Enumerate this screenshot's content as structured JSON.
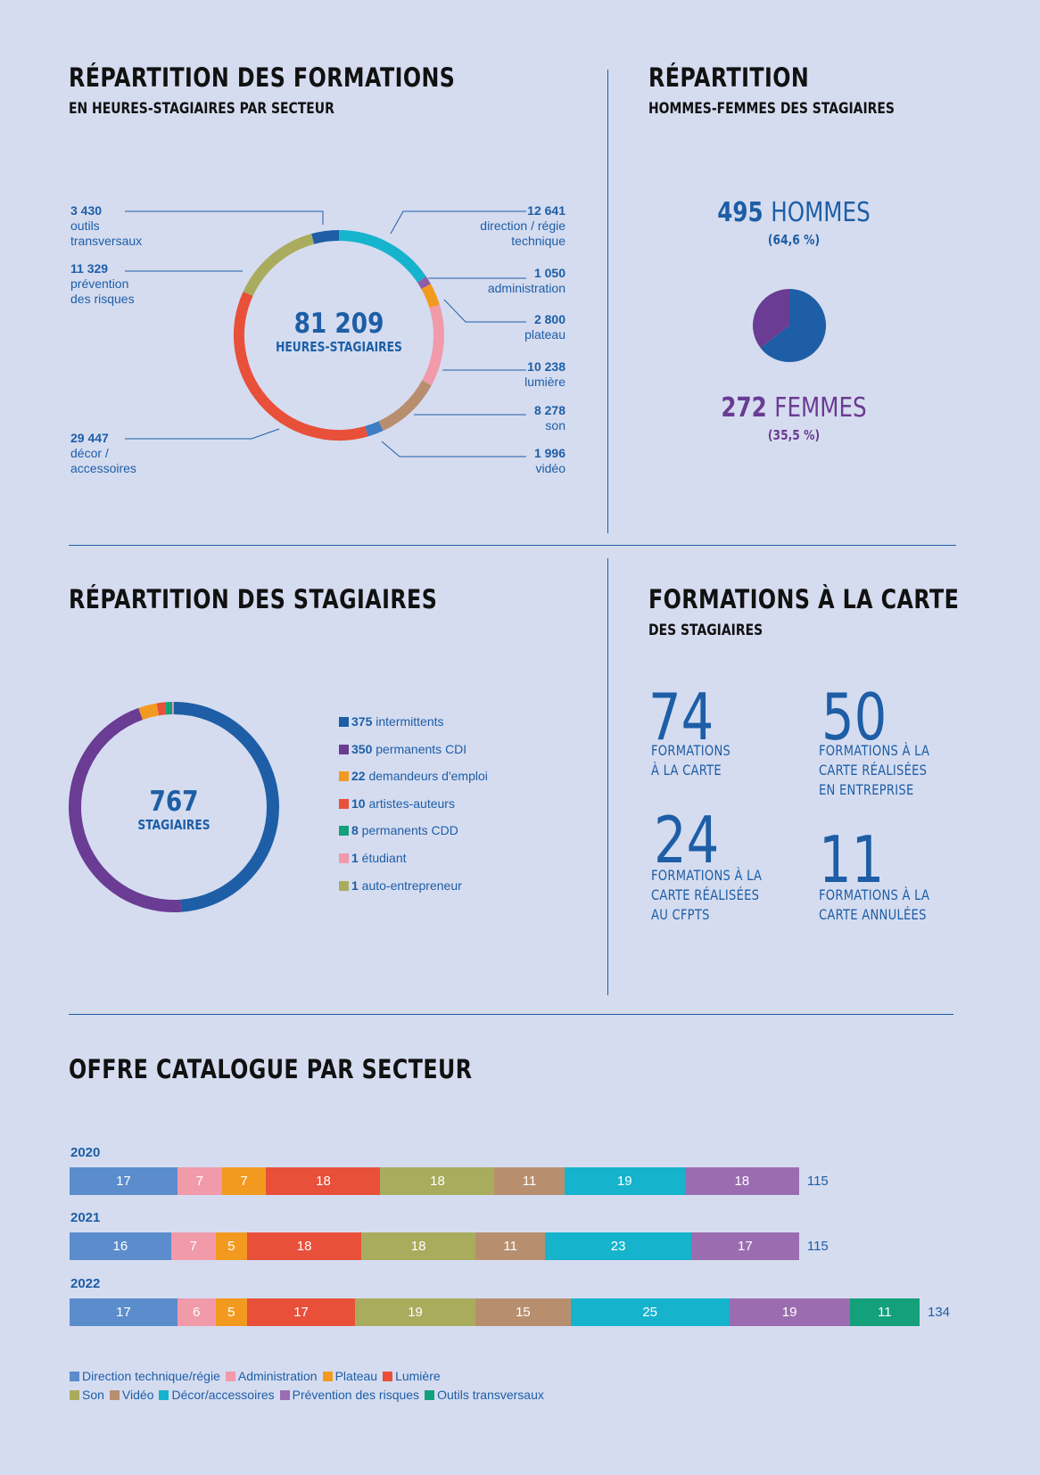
{
  "sections": {
    "formations": {
      "title": "RÉPARTITION DES FORMATIONS",
      "subtitle": "EN HEURES-STAGIAIRES PAR SECTEUR"
    },
    "gender": {
      "title": "RÉPARTITION",
      "subtitle": "HOMMES-FEMMES DES STAGIAIRES"
    },
    "stagiaires": {
      "title": "RÉPARTITION DES STAGIAIRES"
    },
    "carte": {
      "title": "FORMATIONS À LA CARTE",
      "subtitle": "DES STAGIAIRES"
    },
    "catalogue": {
      "title": "OFFRE CATALOGUE PAR SECTEUR"
    }
  },
  "chart_data": [
    {
      "type": "pie",
      "variant": "donut",
      "center_value": "81 209",
      "center_label": "HEURES-STAGIAIRES",
      "slices": [
        {
          "value": 3430,
          "value_label": "3 430",
          "label": "outils transversaux",
          "color": "#1d5ea6"
        },
        {
          "value": 12641,
          "value_label": "12 641",
          "label": "direction / régie technique",
          "color": "#16b3cc"
        },
        {
          "value": 1050,
          "value_label": "1 050",
          "label": "administration",
          "color": "#8e5ca8"
        },
        {
          "value": 2800,
          "value_label": "2 800",
          "label": "plateau",
          "color": "#f29a1f"
        },
        {
          "value": 10238,
          "value_label": "10 238",
          "label": "lumière",
          "color": "#f09aaa"
        },
        {
          "value": 8278,
          "value_label": "8 278",
          "label": "son",
          "color": "#b88f6e"
        },
        {
          "value": 1996,
          "value_label": "1 996",
          "label": "vidéo",
          "color": "#3f7cc4"
        },
        {
          "value": 29447,
          "value_label": "29 447",
          "label": "décor / accessoires",
          "color": "#e8503a"
        },
        {
          "value": 11329,
          "value_label": "11 329",
          "label": "prévention des risques",
          "color": "#a9ac5c"
        }
      ]
    },
    {
      "type": "pie",
      "hommes": {
        "value": 495,
        "label": "HOMMES",
        "pct": "(64,6 %)",
        "color": "#1d5ea6"
      },
      "femmes": {
        "value": 272,
        "label": "FEMMES",
        "pct": "(35,5 %)",
        "color": "#6a3c93"
      }
    },
    {
      "type": "pie",
      "variant": "donut",
      "center_value": "767",
      "center_label": "STAGIAIRES",
      "slices": [
        {
          "value": 375,
          "label": "intermittents",
          "color": "#1d5ea6"
        },
        {
          "value": 350,
          "label": "permanents CDI",
          "color": "#6a3c93"
        },
        {
          "value": 22,
          "label": "demandeurs d'emploi",
          "color": "#f29a1f"
        },
        {
          "value": 10,
          "label": "artistes-auteurs",
          "color": "#e8503a"
        },
        {
          "value": 8,
          "label": "permanents CDD",
          "color": "#14a07a"
        },
        {
          "value": 1,
          "label": "étudiant",
          "color": "#f09aaa"
        },
        {
          "value": 1,
          "label": "auto-entrepreneur",
          "color": "#a9ac5c"
        }
      ]
    },
    {
      "type": "bar",
      "orientation": "horizontal-stacked",
      "categories": [
        "2020",
        "2021",
        "2022"
      ],
      "totals": [
        115,
        115,
        134
      ],
      "series": [
        {
          "name": "Direction technique/régie",
          "color": "#5b8ccc",
          "values": [
            17,
            16,
            17
          ]
        },
        {
          "name": "Administration",
          "color": "#f09aaa",
          "values": [
            7,
            7,
            6
          ]
        },
        {
          "name": "Plateau",
          "color": "#f29a1f",
          "values": [
            7,
            5,
            5
          ]
        },
        {
          "name": "Lumière",
          "color": "#e8503a",
          "values": [
            18,
            18,
            17
          ]
        },
        {
          "name": "Son",
          "color": "#a9ac5c",
          "values": [
            18,
            18,
            19
          ]
        },
        {
          "name": "Vidéo",
          "color": "#b88f6e",
          "values": [
            11,
            11,
            15
          ]
        },
        {
          "name": "Décor/accessoires",
          "color": "#16b3cc",
          "values": [
            19,
            23,
            25
          ]
        },
        {
          "name": "Prévention des risques",
          "color": "#9b6db0",
          "values": [
            18,
            17,
            19
          ]
        },
        {
          "name": "Outils transversaux",
          "color": "#14a07a",
          "values": [
            0,
            0,
            11
          ]
        }
      ]
    }
  ],
  "carte_stats": [
    {
      "number": "74",
      "text": "FORMATIONS\nÀ LA CARTE"
    },
    {
      "number": "50",
      "text": "FORMATIONS À LA\nCARTE RÉALISÉES\nEN ENTREPRISE"
    },
    {
      "number": "24",
      "text": "FORMATIONS À LA\nCARTE RÉALISÉES\nAU CFPTS"
    },
    {
      "number": "11",
      "text": "FORMATIONS À LA\nCARTE ANNULÉES"
    }
  ]
}
